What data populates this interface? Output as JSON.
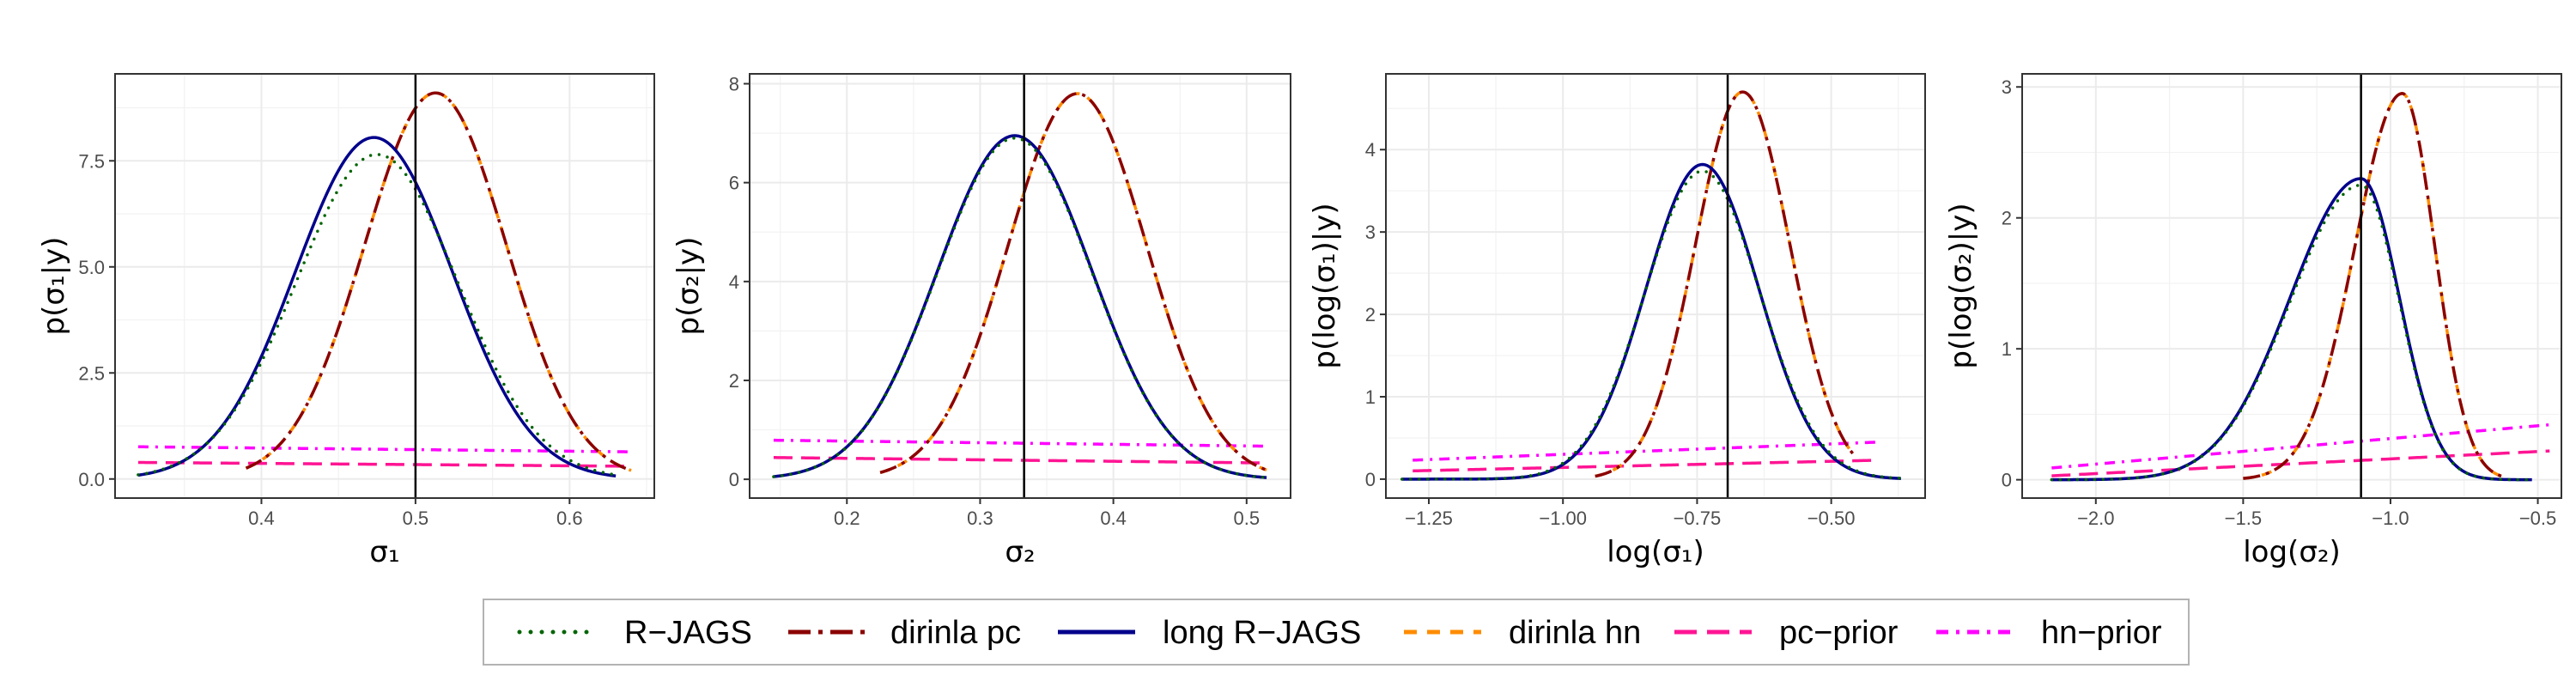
{
  "figure": {
    "legend": {
      "position": "bottom",
      "items": [
        {
          "label": "R−JAGS",
          "color": "#006400",
          "dash": "dotted"
        },
        {
          "label": "dirinla pc",
          "color": "#8B0000",
          "dash": "longdash-dot"
        },
        {
          "label": "long R−JAGS",
          "color": "#00008B",
          "dash": "solid"
        },
        {
          "label": "dirinla hn",
          "color": "#FF8C00",
          "dash": "dashed"
        },
        {
          "label": "pc−prior",
          "color": "#FF1493",
          "dash": "longdash"
        },
        {
          "label": "hn−prior",
          "color": "#FF00FF",
          "dash": "dotdash"
        }
      ]
    }
  },
  "chart_data": [
    {
      "type": "line",
      "xlabel": "σ₁",
      "ylabel": "p(σ₁|y)",
      "xlim": [
        0.305,
        0.655
      ],
      "ylim": [
        -0.45,
        9.55
      ],
      "xticks": [
        0.4,
        0.5,
        0.6
      ],
      "xtick_labels": [
        "0.4",
        "0.5",
        "0.6"
      ],
      "yticks": [
        0,
        2.5,
        5,
        7.5
      ],
      "ytick_labels": [
        "0.0",
        "2.5",
        "5.0",
        "7.5"
      ],
      "grid": true,
      "vline": 0.5,
      "series": [
        {
          "name": "R−JAGS",
          "curve": {
            "kind": "gauss",
            "mu": 0.475,
            "sd": 0.0525,
            "peak": 7.65,
            "xmin": 0.32,
            "xmax": 0.63
          }
        },
        {
          "name": "long R−JAGS",
          "curve": {
            "kind": "gauss",
            "mu": 0.473,
            "sd": 0.051,
            "peak": 8.05,
            "xmin": 0.32,
            "xmax": 0.63
          }
        },
        {
          "name": "dirinla pc",
          "curve": {
            "kind": "gauss",
            "mu": 0.513,
            "sd": 0.046,
            "peak": 9.1,
            "xmin": 0.39,
            "xmax": 0.64
          }
        },
        {
          "name": "dirinla hn",
          "curve": {
            "kind": "gauss",
            "mu": 0.513,
            "sd": 0.046,
            "peak": 9.1,
            "xmin": 0.39,
            "xmax": 0.64
          }
        },
        {
          "name": "pc−prior",
          "curve": {
            "kind": "linear",
            "y0": 0.39,
            "y1": 0.3,
            "xmin": 0.32,
            "xmax": 0.64
          }
        },
        {
          "name": "hn−prior",
          "curve": {
            "kind": "linear",
            "y0": 0.76,
            "y1": 0.64,
            "xmin": 0.32,
            "xmax": 0.64
          }
        }
      ]
    },
    {
      "type": "line",
      "xlabel": "σ₂",
      "ylabel": "p(σ₂|y)",
      "xlim": [
        0.127,
        0.533
      ],
      "ylim": [
        -0.38,
        8.2
      ],
      "xticks": [
        0.2,
        0.3,
        0.4,
        0.5
      ],
      "xtick_labels": [
        "0.2",
        "0.3",
        "0.4",
        "0.5"
      ],
      "yticks": [
        0,
        2,
        4,
        6,
        8
      ],
      "ytick_labels": [
        "0",
        "2",
        "4",
        "6",
        "8"
      ],
      "grid": true,
      "vline": 0.333,
      "series": [
        {
          "name": "R−JAGS",
          "curve": {
            "kind": "gauss",
            "mu": 0.326,
            "sd": 0.058,
            "peak": 6.9,
            "xmin": 0.145,
            "xmax": 0.515
          }
        },
        {
          "name": "long R−JAGS",
          "curve": {
            "kind": "gauss",
            "mu": 0.326,
            "sd": 0.058,
            "peak": 6.95,
            "xmin": 0.145,
            "xmax": 0.515
          }
        },
        {
          "name": "dirinla pc",
          "curve": {
            "kind": "gauss",
            "mu": 0.373,
            "sd": 0.052,
            "peak": 7.8,
            "xmin": 0.225,
            "xmax": 0.515
          }
        },
        {
          "name": "dirinla hn",
          "curve": {
            "kind": "gauss",
            "mu": 0.373,
            "sd": 0.052,
            "peak": 7.8,
            "xmin": 0.225,
            "xmax": 0.515
          }
        },
        {
          "name": "pc−prior",
          "curve": {
            "kind": "linear",
            "y0": 0.44,
            "y1": 0.33,
            "xmin": 0.145,
            "xmax": 0.515
          }
        },
        {
          "name": "hn−prior",
          "curve": {
            "kind": "linear",
            "y0": 0.79,
            "y1": 0.67,
            "xmin": 0.145,
            "xmax": 0.515
          }
        }
      ]
    },
    {
      "type": "line",
      "xlabel": "log(σ₁)",
      "ylabel": "p(log(σ₁)|y)",
      "xlim": [
        -1.33,
        -0.325
      ],
      "ylim": [
        -0.23,
        4.92
      ],
      "xticks": [
        -1.25,
        -1.0,
        -0.75,
        -0.5
      ],
      "xtick_labels": [
        "−1.25",
        "−1.00",
        "−0.75",
        "−0.50"
      ],
      "yticks": [
        0,
        1,
        2,
        3,
        4
      ],
      "ytick_labels": [
        "0",
        "1",
        "2",
        "3",
        "4"
      ],
      "grid": true,
      "vline": -0.693,
      "series": [
        {
          "name": "R−JAGS",
          "curve": {
            "kind": "gauss",
            "mu": -0.74,
            "sd": 0.107,
            "peak": 3.74,
            "xmin": -1.3,
            "xmax": -0.37
          }
        },
        {
          "name": "long R−JAGS",
          "curve": {
            "kind": "gauss",
            "mu": -0.74,
            "sd": 0.105,
            "peak": 3.82,
            "xmin": -1.3,
            "xmax": -0.37
          }
        },
        {
          "name": "dirinla pc",
          "curve": {
            "kind": "gauss",
            "mu": -0.665,
            "sd": 0.088,
            "peak": 4.7,
            "xmin": -0.94,
            "xmax": -0.46
          }
        },
        {
          "name": "dirinla hn",
          "curve": {
            "kind": "gauss",
            "mu": -0.665,
            "sd": 0.088,
            "peak": 4.7,
            "xmin": -0.94,
            "xmax": -0.46
          }
        },
        {
          "name": "pc−prior",
          "curve": {
            "kind": "linear",
            "y0": 0.1,
            "y1": 0.23,
            "xmin": -1.28,
            "xmax": -0.41
          }
        },
        {
          "name": "hn−prior",
          "curve": {
            "kind": "linear",
            "y0": 0.23,
            "y1": 0.45,
            "xmin": -1.28,
            "xmax": -0.41
          }
        }
      ]
    },
    {
      "type": "line",
      "xlabel": "log(σ₂)",
      "ylabel": "p(log(σ₂)|y)",
      "xlim": [
        -2.25,
        -0.42
      ],
      "ylim": [
        -0.14,
        3.1
      ],
      "xticks": [
        -2.0,
        -1.5,
        -1.0,
        -0.5
      ],
      "xtick_labels": [
        "−2.0",
        "−1.5",
        "−1.0",
        "−0.5"
      ],
      "yticks": [
        0,
        1,
        2,
        3
      ],
      "ytick_labels": [
        "0",
        "1",
        "2",
        "3"
      ],
      "grid": true,
      "vline": -1.1,
      "series": [
        {
          "name": "R−JAGS",
          "curve": {
            "kind": "skew",
            "mu": -1.1,
            "sl": 0.24,
            "sr": 0.13,
            "peak": 2.25,
            "xmin": -2.15,
            "xmax": -0.52
          }
        },
        {
          "name": "long R−JAGS",
          "curve": {
            "kind": "skew",
            "mu": -1.1,
            "sl": 0.24,
            "sr": 0.13,
            "peak": 2.3,
            "xmin": -2.15,
            "xmax": -0.52
          }
        },
        {
          "name": "dirinla pc",
          "curve": {
            "kind": "skew",
            "mu": -0.96,
            "sl": 0.16,
            "sr": 0.11,
            "peak": 2.95,
            "xmin": -1.5,
            "xmax": -0.62
          }
        },
        {
          "name": "dirinla hn",
          "curve": {
            "kind": "skew",
            "mu": -0.96,
            "sl": 0.16,
            "sr": 0.11,
            "peak": 2.95,
            "xmin": -1.5,
            "xmax": -0.62
          }
        },
        {
          "name": "pc−prior",
          "curve": {
            "kind": "linear",
            "y0": 0.03,
            "y1": 0.22,
            "xmin": -2.15,
            "xmax": -0.46
          }
        },
        {
          "name": "hn−prior",
          "curve": {
            "kind": "linear",
            "y0": 0.09,
            "y1": 0.42,
            "xmin": -2.15,
            "xmax": -0.46
          }
        }
      ]
    }
  ]
}
